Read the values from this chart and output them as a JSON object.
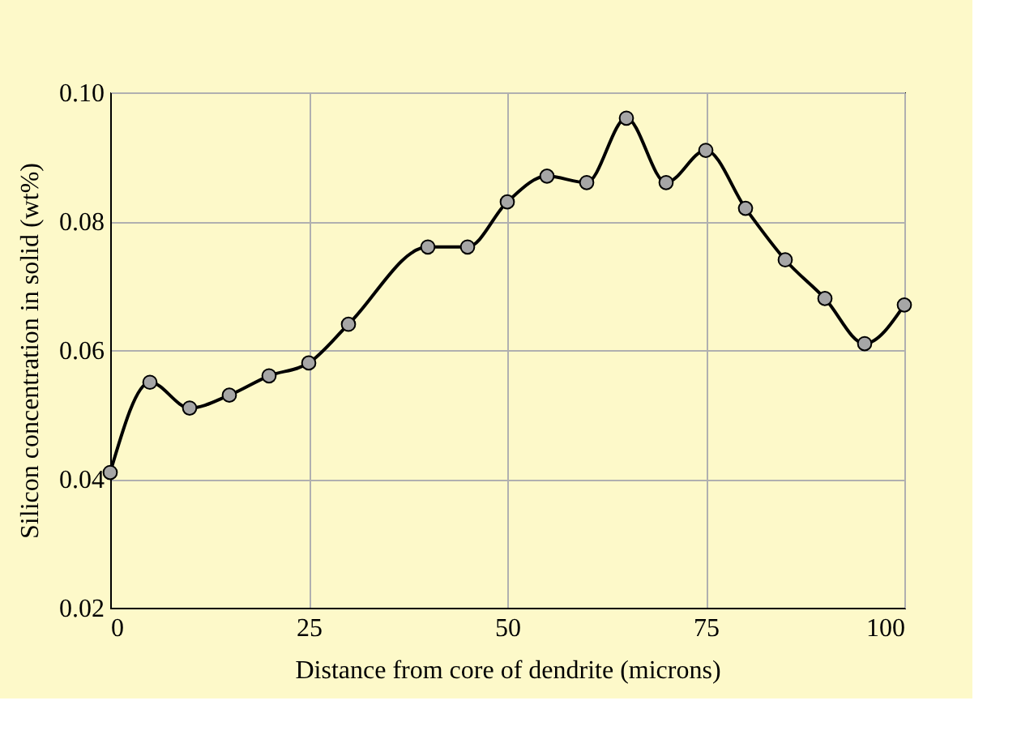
{
  "chart_data": {
    "type": "line",
    "xlabel": "Distance from core of dendrite (microns)",
    "ylabel": "Silicon concentration in solid (wt%)",
    "x": [
      0,
      5,
      10,
      15,
      20,
      25,
      30,
      40,
      45,
      50,
      55,
      60,
      65,
      70,
      75,
      80,
      85,
      90,
      95,
      100
    ],
    "series": [
      {
        "color": "#000000",
        "values": [
          0.041,
          0.055,
          0.051,
          0.053,
          0.056,
          0.058,
          0.064,
          0.076,
          0.076,
          0.083,
          0.087,
          0.086,
          0.096,
          0.086,
          0.091,
          0.082,
          0.074,
          0.068,
          0.061,
          0.067
        ]
      }
    ],
    "xlim": [
      0,
      100
    ],
    "xticks": [
      0,
      25,
      50,
      75,
      100
    ],
    "ylim": [
      0.02,
      0.1
    ],
    "yticks": [
      {
        "value": 0.02,
        "label": "0.02"
      },
      {
        "value": 0.04,
        "label": "0.04"
      },
      {
        "value": 0.06,
        "label": "0.06"
      },
      {
        "value": 0.08,
        "label": "0.08"
      },
      {
        "value": 0.1,
        "label": "0.10"
      }
    ],
    "grid": true,
    "marker": "circle",
    "line_style": "solid"
  }
}
